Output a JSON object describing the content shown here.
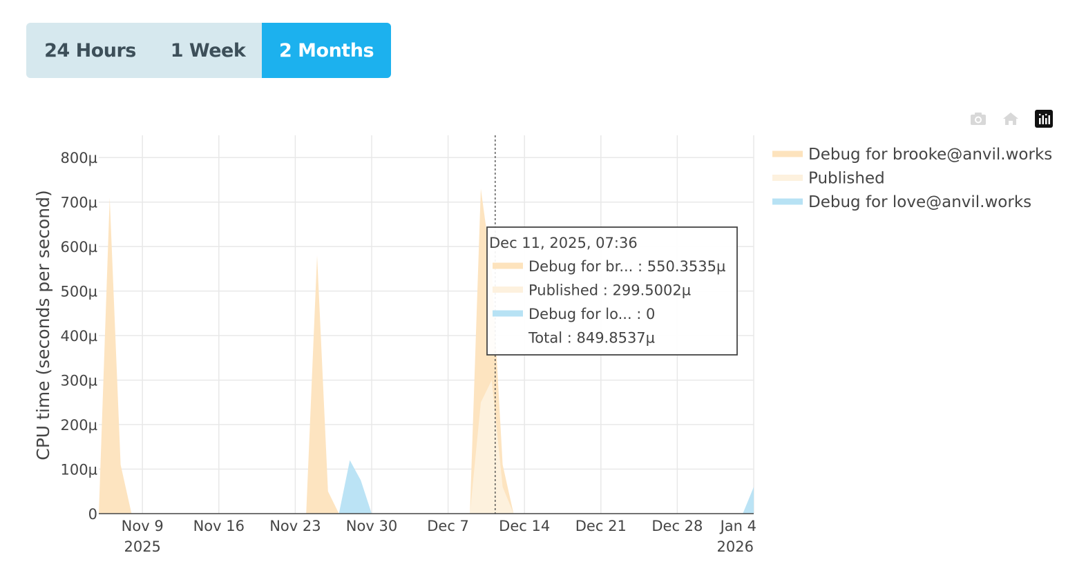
{
  "range_buttons": [
    {
      "label": "24 Hours",
      "active": false
    },
    {
      "label": "1 Week",
      "active": false
    },
    {
      "label": "2 Months",
      "active": true
    }
  ],
  "modebar": [
    "camera-icon",
    "home-icon",
    "plotly-logo-icon"
  ],
  "chart_data": {
    "type": "area",
    "stacked": true,
    "title": "",
    "xlabel": "",
    "ylabel": "CPU time (seconds per second)",
    "x_range": [
      "2025-11-05",
      "2026-01-04"
    ],
    "ylim": [
      0,
      0.00085
    ],
    "y_ticks": [
      {
        "value": 0,
        "label": "0"
      },
      {
        "value": 0.0001,
        "label": "100µ"
      },
      {
        "value": 0.0002,
        "label": "200µ"
      },
      {
        "value": 0.0003,
        "label": "300µ"
      },
      {
        "value": 0.0004,
        "label": "400µ"
      },
      {
        "value": 0.0005,
        "label": "500µ"
      },
      {
        "value": 0.0006,
        "label": "600µ"
      },
      {
        "value": 0.0007,
        "label": "700µ"
      },
      {
        "value": 0.0008,
        "label": "800µ"
      }
    ],
    "x_ticks": [
      {
        "value": "2025-11-09",
        "label": "Nov 9",
        "sub": "2025"
      },
      {
        "value": "2025-11-16",
        "label": "Nov 16",
        "sub": ""
      },
      {
        "value": "2025-11-23",
        "label": "Nov 23",
        "sub": ""
      },
      {
        "value": "2025-11-30",
        "label": "Nov 30",
        "sub": ""
      },
      {
        "value": "2025-12-07",
        "label": "Dec 7",
        "sub": ""
      },
      {
        "value": "2025-12-14",
        "label": "Dec 14",
        "sub": ""
      },
      {
        "value": "2025-12-21",
        "label": "Dec 21",
        "sub": ""
      },
      {
        "value": "2025-12-28",
        "label": "Dec 28",
        "sub": ""
      },
      {
        "value": "2026-01-04",
        "label": "Jan 4",
        "sub": "2026"
      }
    ],
    "grid": true,
    "legend_position": "top-right",
    "series": [
      {
        "name": "Debug for brooke@anvil.works",
        "color": "#fde3bd",
        "points": [
          [
            "2025-11-05T00:00",
            0
          ],
          [
            "2025-11-06T00:00",
            0.00071
          ],
          [
            "2025-11-07T00:00",
            0.00011
          ],
          [
            "2025-11-08T00:00",
            0
          ],
          [
            "2025-11-24T00:00",
            0
          ],
          [
            "2025-11-25T00:00",
            0.00058
          ],
          [
            "2025-11-26T00:00",
            5e-05
          ],
          [
            "2025-11-27T00:00",
            0
          ],
          [
            "2025-12-09T00:00",
            0
          ],
          [
            "2025-12-10T00:00",
            0.00073
          ],
          [
            "2025-12-11T00:00",
            0.00055
          ],
          [
            "2025-12-12T00:00",
            0.00011
          ],
          [
            "2025-12-13T00:00",
            0
          ],
          [
            "2026-01-04T00:00",
            0
          ]
        ]
      },
      {
        "name": "Published",
        "color": "#fdf1de",
        "points": [
          [
            "2025-11-05T00:00",
            0
          ],
          [
            "2025-12-09T00:00",
            0
          ],
          [
            "2025-12-10T00:00",
            0.00025
          ],
          [
            "2025-12-11T00:00",
            0.0003
          ],
          [
            "2025-12-12T00:00",
            6e-05
          ],
          [
            "2025-12-13T00:00",
            0
          ],
          [
            "2026-01-04T00:00",
            0
          ]
        ]
      },
      {
        "name": "Debug for love@anvil.works",
        "color": "#b7e2f4",
        "points": [
          [
            "2025-11-05T00:00",
            0
          ],
          [
            "2025-11-27T00:00",
            0
          ],
          [
            "2025-11-28T00:00",
            0.00012
          ],
          [
            "2025-11-29T00:00",
            7.5e-05
          ],
          [
            "2025-11-30T00:00",
            0
          ],
          [
            "2026-01-03T00:00",
            0
          ],
          [
            "2026-01-04T00:00",
            6e-05
          ]
        ]
      }
    ],
    "hover": {
      "x": "2025-12-11T07:36",
      "title": "Dec 11, 2025, 07:36",
      "rows": [
        {
          "label": "Debug for br... : 550.3535µ",
          "color": "#fde3bd"
        },
        {
          "label": "Published : 299.5002µ",
          "color": "#fdf1de"
        },
        {
          "label": "Debug for lo... : 0",
          "color": "#b7e2f4"
        },
        {
          "label": "Total : 849.8537µ",
          "color": ""
        }
      ]
    }
  }
}
